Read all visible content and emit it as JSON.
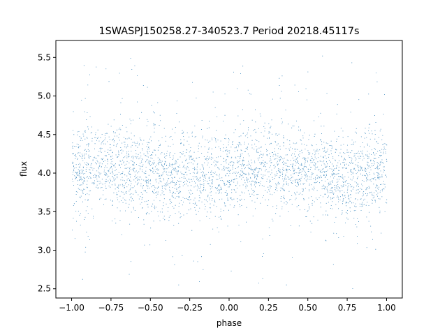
{
  "chart_data": {
    "type": "scatter",
    "title": "1SWASPJ150258.27-340523.7 Period 20218.45117s",
    "xlabel": "phase",
    "ylabel": "flux",
    "xlim": [
      -1.1,
      1.1
    ],
    "ylim": [
      2.38,
      5.72
    ],
    "xticks": [
      -1.0,
      -0.75,
      -0.5,
      -0.25,
      0.0,
      0.25,
      0.5,
      0.75,
      1.0
    ],
    "xtick_labels": [
      "−1.00",
      "−0.75",
      "−0.50",
      "−0.25",
      "0.00",
      "0.25",
      "0.50",
      "0.75",
      "1.00"
    ],
    "yticks": [
      2.5,
      3.0,
      3.5,
      4.0,
      4.5,
      5.0,
      5.5
    ],
    "ytick_labels": [
      "2.5",
      "3.0",
      "3.5",
      "4.0",
      "4.5",
      "5.0",
      "5.5"
    ],
    "grid": false,
    "marker_color": "#1f77b4",
    "series": [
      {
        "x_range": [
          -1.0,
          1.0
        ],
        "point_count": 40000,
        "baseline_flux": 3.97,
        "modulation": [
          {
            "phase": -1.0,
            "mean_flux": 4.03
          },
          {
            "phase": -0.8,
            "mean_flux": 4.12
          },
          {
            "phase": -0.5,
            "mean_flux": 4.02
          },
          {
            "phase": -0.25,
            "mean_flux": 3.95
          },
          {
            "phase": 0.0,
            "mean_flux": 4.03
          },
          {
            "phase": 0.2,
            "mean_flux": 4.12
          },
          {
            "phase": 0.5,
            "mean_flux": 4.02
          },
          {
            "phase": 0.75,
            "mean_flux": 3.95
          },
          {
            "phase": 1.0,
            "mean_flux": 4.03
          }
        ],
        "scatter_sd": 0.25,
        "outlier_range": [
          2.5,
          5.6
        ]
      }
    ]
  }
}
